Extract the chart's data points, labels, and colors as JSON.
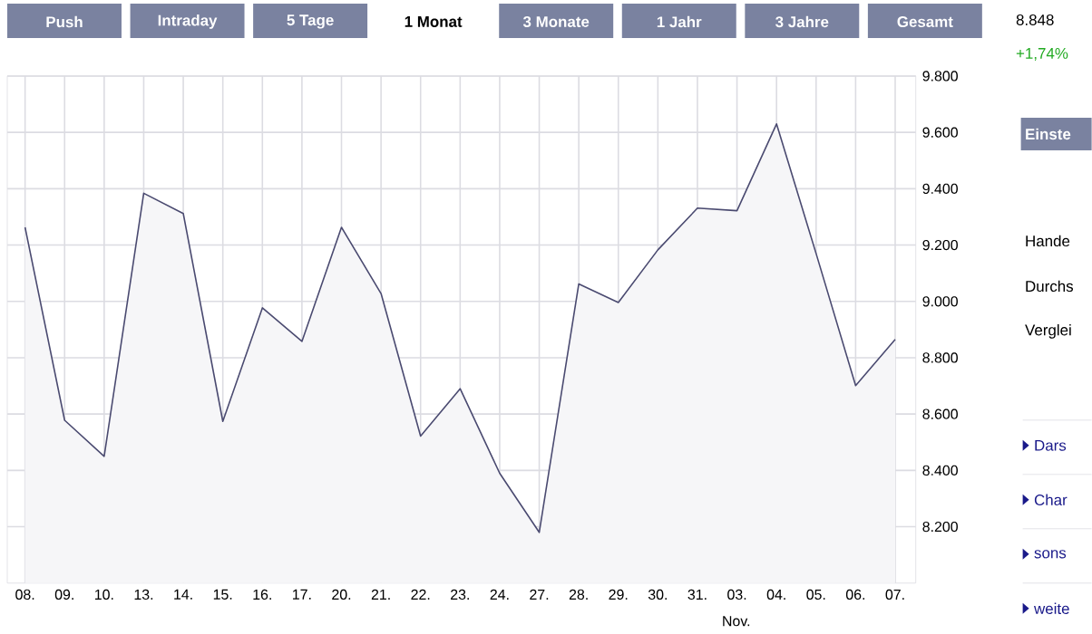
{
  "chart_data": {
    "type": "area",
    "categories": [
      "08.",
      "09.",
      "10.",
      "13.",
      "14.",
      "15.",
      "16.",
      "17.",
      "20.",
      "21.",
      "22.",
      "23.",
      "24.",
      "27.",
      "28.",
      "29.",
      "30.",
      "31.",
      "03.",
      "04.",
      "05.",
      "06.",
      "07."
    ],
    "series": [
      {
        "color": "#4a4a70",
        "values": [
          9263,
          8578,
          8450,
          9384,
          9312,
          8574,
          8977,
          8858,
          9263,
          9028,
          8522,
          8690,
          8390,
          8180,
          9062,
          8996,
          9183,
          9331,
          9322,
          9630,
          9170,
          8701,
          8865
        ]
      }
    ],
    "ylim": [
      8000,
      9800
    ],
    "yticks": [
      {
        "value": 8200,
        "label": "8.200"
      },
      {
        "value": 8400,
        "label": "8.400"
      },
      {
        "value": 8600,
        "label": "8.600"
      },
      {
        "value": 8800,
        "label": "8.800"
      },
      {
        "value": 9000,
        "label": "9.000"
      },
      {
        "value": 9200,
        "label": "9.200"
      },
      {
        "value": 9400,
        "label": "9.400"
      },
      {
        "value": 9600,
        "label": "9.600"
      },
      {
        "value": 9800,
        "label": "9.800"
      }
    ],
    "grid": true,
    "annotations": [
      "Push",
      "Intraday",
      "5 Tage",
      "1 Monat",
      "3 Monate",
      "1 Jahr",
      "3 Jahre",
      "Gesamt",
      "8.848",
      "+1,74%",
      "Einste",
      "Hande",
      "Durchs",
      "Verglei",
      "Dars",
      "Char",
      "sons",
      "weite",
      "Nov."
    ]
  }
}
